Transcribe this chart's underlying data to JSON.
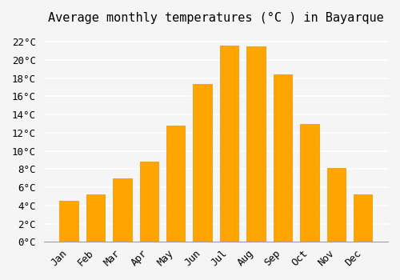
{
  "title": "Average monthly temperatures (°C ) in Bayarque",
  "months": [
    "Jan",
    "Feb",
    "Mar",
    "Apr",
    "May",
    "Jun",
    "Jul",
    "Aug",
    "Sep",
    "Oct",
    "Nov",
    "Dec"
  ],
  "values": [
    4.5,
    5.2,
    7.0,
    8.8,
    12.8,
    17.4,
    21.6,
    21.5,
    18.4,
    13.0,
    8.1,
    5.2
  ],
  "bar_color": "#FFA500",
  "bar_edge_color": "#E89000",
  "ylim": [
    0,
    23
  ],
  "yticks": [
    0,
    2,
    4,
    6,
    8,
    10,
    12,
    14,
    16,
    18,
    20,
    22
  ],
  "background_color": "#F5F5F5",
  "grid_color": "#FFFFFF",
  "title_fontsize": 11,
  "tick_fontsize": 9
}
